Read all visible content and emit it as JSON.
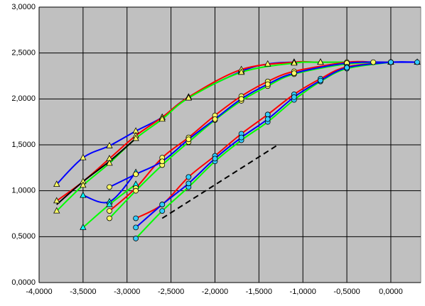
{
  "chart_data": {
    "type": "line",
    "xlim": [
      -4,
      0.34
    ],
    "ylim": [
      0,
      3
    ],
    "grid": true,
    "smooth": true,
    "xticks": [
      {
        "value": -4,
        "label": "-4,0000"
      },
      {
        "value": -3.5,
        "label": "-3,5000"
      },
      {
        "value": -3,
        "label": "-3,0000"
      },
      {
        "value": -2.5,
        "label": "-2,5000"
      },
      {
        "value": -2,
        "label": "-2,0000"
      },
      {
        "value": -1.5,
        "label": "-1,5000"
      },
      {
        "value": -1,
        "label": "-1,0000"
      },
      {
        "value": -0.5,
        "label": "-0,5000"
      },
      {
        "value": 0,
        "label": "0,0000"
      }
    ],
    "yticks": [
      {
        "value": 0,
        "label": "0,0000"
      },
      {
        "value": 0.5,
        "label": "0,5000"
      },
      {
        "value": 1,
        "label": "1,0000"
      },
      {
        "value": 1.5,
        "label": "1,5000"
      },
      {
        "value": 2,
        "label": "2,0000"
      },
      {
        "value": 2.5,
        "label": "2,5000"
      },
      {
        "value": 3,
        "label": "3,0000"
      }
    ],
    "series": [
      {
        "color": "#0000ff",
        "marker": "triangle",
        "marker_color": "#ffff66",
        "x": [
          -3.8,
          -3.5,
          -3.2,
          -2.9,
          -2.6,
          -2.3,
          -1.7,
          -1.4,
          -1.1,
          -0.8,
          -0.5,
          0,
          0.3
        ],
        "values": [
          1.07,
          1.36,
          1.49,
          1.65,
          1.8,
          2.02,
          2.3,
          2.38,
          2.4,
          2.4,
          2.4,
          2.4,
          2.4
        ]
      },
      {
        "color": "#ff0000",
        "marker": "triangle",
        "marker_color": "#ffff66",
        "x": [
          -3.8,
          -3.5,
          -3.2,
          -2.9,
          -2.6,
          -2.3,
          -1.7,
          -1.1,
          -0.8,
          0
        ],
        "values": [
          0.89,
          1.1,
          1.35,
          1.6,
          1.8,
          2.02,
          2.32,
          2.4,
          2.4,
          2.4
        ]
      },
      {
        "color": "#00ff00",
        "marker": "triangle",
        "marker_color": "#ffff66",
        "x": [
          -3.8,
          -3.5,
          -3.2,
          -2.9,
          -2.6,
          -2.3,
          -1.7,
          -1.1,
          -0.8,
          0
        ],
        "values": [
          0.78,
          1.06,
          1.3,
          1.57,
          1.78,
          2.01,
          2.29,
          2.39,
          2.4,
          2.4
        ]
      },
      {
        "color": "#0000ff",
        "marker": "triangle",
        "marker_color": "#00ffff",
        "x": [
          -3.5,
          -3.2,
          -2.9
        ],
        "values": [
          0.95,
          0.88,
          1.2
        ]
      },
      {
        "color": "#00ff00",
        "marker": "triangle",
        "marker_color": "#00ffff",
        "x": [
          -3.5,
          -3.2,
          -2.9
        ],
        "values": [
          0.6,
          0.85,
          1.07
        ]
      },
      {
        "color": "#ff0000",
        "marker": "circle",
        "marker_color": "#ffff66",
        "x": [
          -3.2,
          -2.9,
          -2.6,
          -2.3,
          -2,
          -1.7,
          -1.4,
          -1.1,
          -0.5,
          -0.2,
          0
        ],
        "values": [
          0.78,
          1.03,
          1.36,
          1.58,
          1.82,
          2.03,
          2.19,
          2.3,
          2.4,
          2.4,
          2.4
        ]
      },
      {
        "color": "#00ff00",
        "marker": "circle",
        "marker_color": "#ffff66",
        "x": [
          -3.2,
          -2.9,
          -2.6,
          -2.3,
          -2,
          -1.7,
          -1.4,
          -1.1,
          -0.5,
          0
        ],
        "values": [
          0.7,
          1,
          1.28,
          1.53,
          1.77,
          1.98,
          2.14,
          2.27,
          2.38,
          2.4
        ]
      },
      {
        "color": "#0000ff",
        "marker": "circle",
        "marker_color": "#ffff66",
        "x": [
          -3.2,
          -2.9,
          -2.6,
          -2.3,
          -2,
          -1.7,
          -1.4,
          -1.1,
          -0.5,
          0
        ],
        "values": [
          1.04,
          1.18,
          1.32,
          1.56,
          1.78,
          2,
          2.16,
          2.28,
          2.39,
          2.4
        ]
      },
      {
        "color": "#ff0000",
        "marker": "circle",
        "marker_color": "#33ccff",
        "x": [
          -2.9,
          -2.6,
          -2.3,
          -2,
          -1.7,
          -1.4,
          -1.1,
          -0.8,
          -0.5,
          0
        ],
        "values": [
          0.7,
          0.85,
          1.15,
          1.38,
          1.62,
          1.83,
          2.05,
          2.22,
          2.35,
          2.4
        ]
      },
      {
        "color": "#00ff00",
        "marker": "circle",
        "marker_color": "#33ccff",
        "x": [
          -2.9,
          -2.6,
          -2.3,
          -2,
          -1.7,
          -1.4,
          -1.1,
          -0.8,
          -0.5,
          0
        ],
        "values": [
          0.48,
          0.78,
          1.04,
          1.32,
          1.55,
          1.75,
          1.99,
          2.19,
          2.33,
          2.4
        ]
      },
      {
        "color": "#0000ff",
        "marker": "circle",
        "marker_color": "#33ccff",
        "x": [
          -2.9,
          -2.6,
          -2.3,
          -2,
          -1.7,
          -1.4,
          -1.1,
          -0.8,
          -0.5,
          0,
          0.3
        ],
        "values": [
          0.6,
          0.85,
          1.08,
          1.35,
          1.58,
          1.78,
          2.02,
          2.2,
          2.34,
          2.4,
          2.4
        ]
      },
      {
        "color": "#000000",
        "marker": "none",
        "x": [
          -3.8,
          -3.5,
          -3.2,
          -2.9
        ],
        "values": [
          0.85,
          1.1,
          1.32,
          1.57
        ]
      },
      {
        "color": "#000000",
        "marker": "none",
        "dash": true,
        "x": [
          -2.6,
          -1.3
        ],
        "values": [
          0.7,
          1.49
        ]
      }
    ]
  }
}
